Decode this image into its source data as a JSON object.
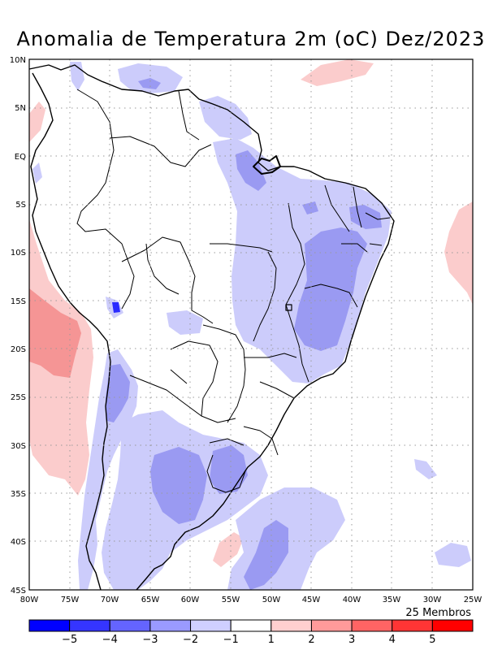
{
  "title": "Anomalia de Temperatura 2m (oC) Dez/2023",
  "members_label": "25 Membros",
  "lat_labels": [
    "10N",
    "5N",
    "EQ",
    "5S",
    "10S",
    "15S",
    "20S",
    "25S",
    "30S",
    "35S",
    "40S",
    "45S"
  ],
  "lon_labels": [
    "80W",
    "75W",
    "70W",
    "65W",
    "60W",
    "55W",
    "50W",
    "45W",
    "40W",
    "35W",
    "30W",
    "25W"
  ],
  "colorbar": {
    "tick_labels": [
      "−5",
      "−4",
      "−3",
      "−2",
      "−1",
      "1",
      "2",
      "3",
      "4",
      "5"
    ],
    "colors": [
      "#0000ff",
      "#3535ff",
      "#6464ff",
      "#9a9aff",
      "#cfcfff",
      "#ffffff",
      "#ffcfcf",
      "#ff9a9a",
      "#ff6464",
      "#ff3535",
      "#ff0000"
    ]
  },
  "anomaly_colors": {
    "cold_-1_-2": "#ccccfb",
    "cold_-2_-3": "#9a9af2",
    "cold_-3_-4": "#6464ff",
    "cold_-4_-5": "#2a2aff",
    "warm_1_2": "#fbcccc",
    "warm_2_3": "#f59595"
  }
}
